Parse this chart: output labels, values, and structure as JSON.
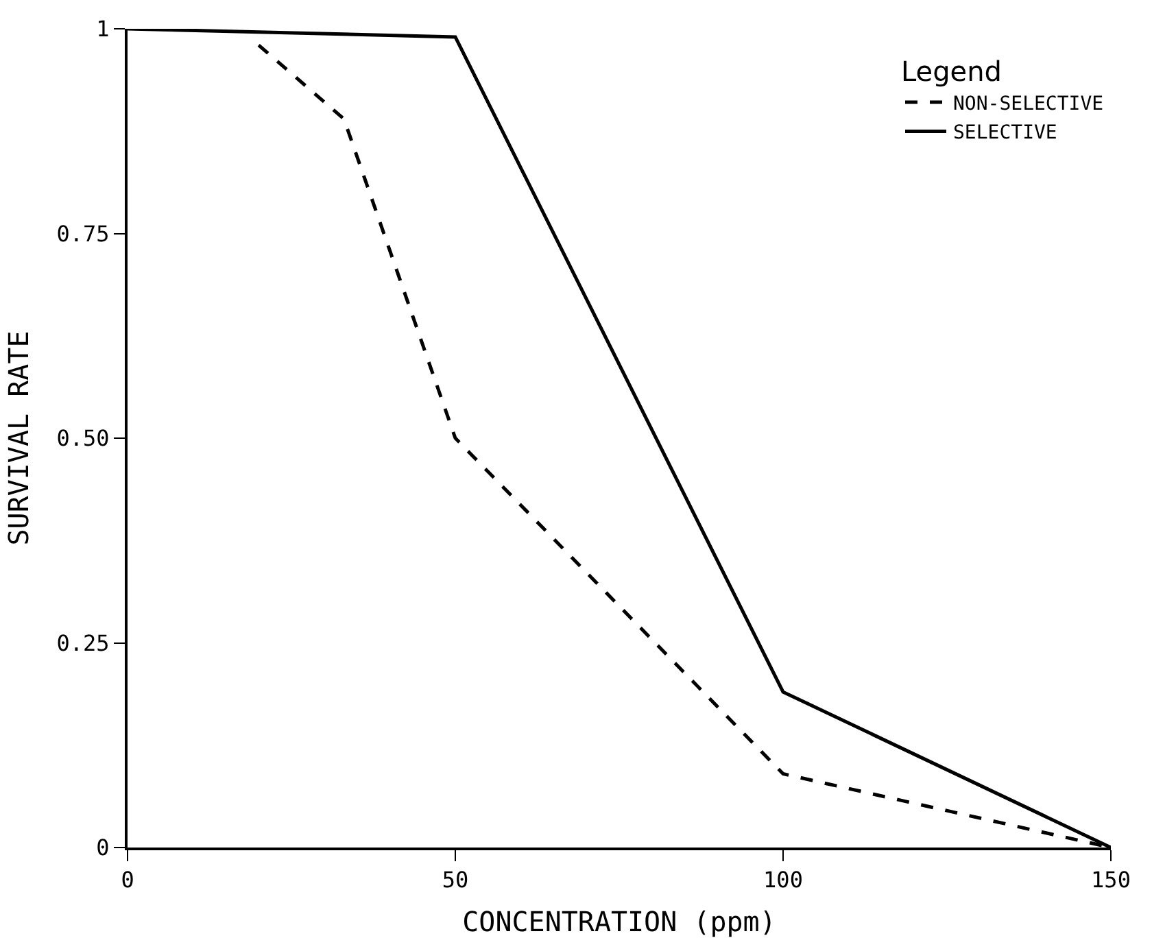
{
  "chart_data": {
    "type": "line",
    "xlabel": "CONCENTRATION (ppm)",
    "ylabel": "SURVIVAL RATE",
    "legend_title": "Legend",
    "series": [
      {
        "name": "NON-SELECTIVE",
        "color": "#000000",
        "line_style": "dashed",
        "x": [
          20,
          33,
          50,
          100,
          150
        ],
        "values": [
          0.98,
          0.89,
          0.5,
          0.09,
          0
        ]
      },
      {
        "name": "SELECTIVE",
        "color": "#000000",
        "line_style": "solid",
        "x": [
          0,
          50,
          100,
          150
        ],
        "values": [
          1,
          0.99,
          0.19,
          0
        ]
      }
    ],
    "xlim": [
      0,
      150
    ],
    "xticks": [
      0,
      50,
      100,
      150
    ],
    "ylim": [
      0,
      1
    ],
    "yticks": [
      0,
      {
        "value": 0.25,
        "label": "0.25"
      },
      {
        "value": 0.5,
        "label": "0.50"
      },
      {
        "value": 0.75,
        "label": "0.75"
      },
      1
    ],
    "legend": "top right",
    "marker": "none"
  }
}
